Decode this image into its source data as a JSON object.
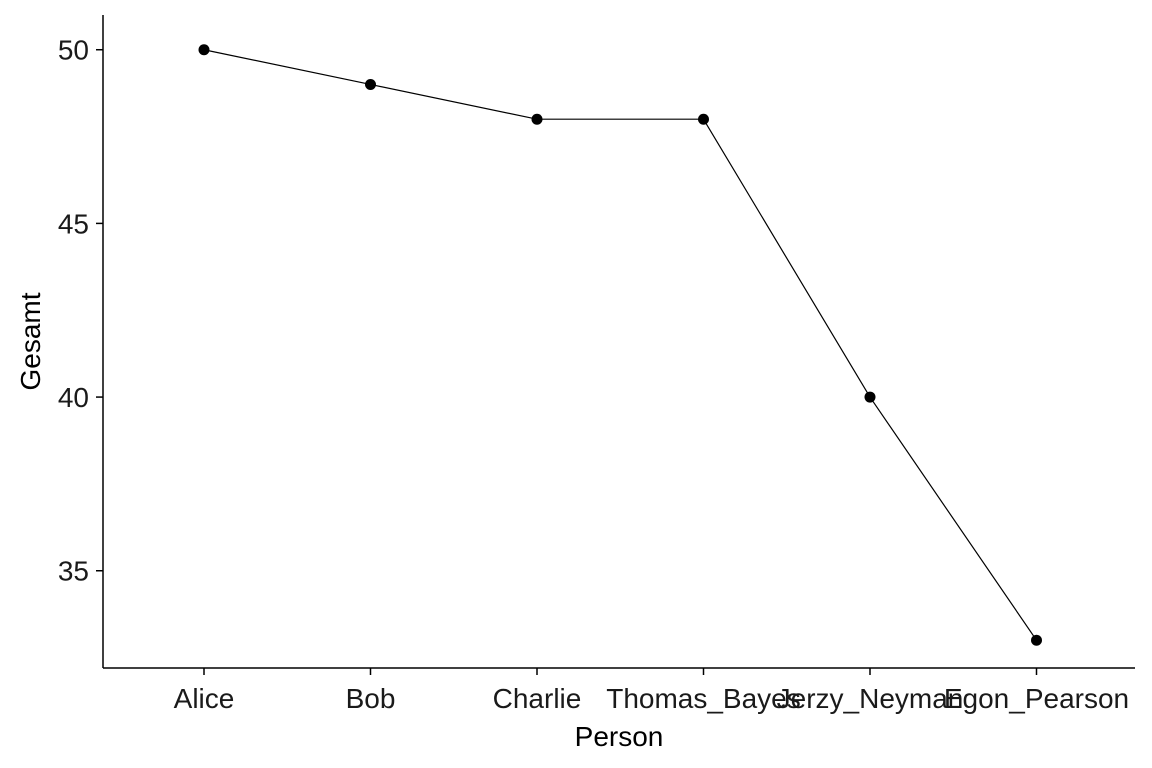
{
  "chart_data": {
    "type": "line",
    "title": "",
    "xlabel": "Person",
    "ylabel": "Gesamt",
    "categories": [
      "Alice",
      "Bob",
      "Charlie",
      "Thomas_Bayes",
      "Jerzy_Neyman",
      "Egon_Pearson"
    ],
    "series": [
      {
        "values": [
          50,
          49,
          48,
          48,
          40,
          33
        ]
      }
    ],
    "ylim": [
      32.2,
      51.0
    ],
    "yticks": [
      35,
      40,
      45,
      50
    ],
    "grid": false,
    "legend": "none",
    "line_color": "#000000",
    "point_color": "#000000"
  }
}
